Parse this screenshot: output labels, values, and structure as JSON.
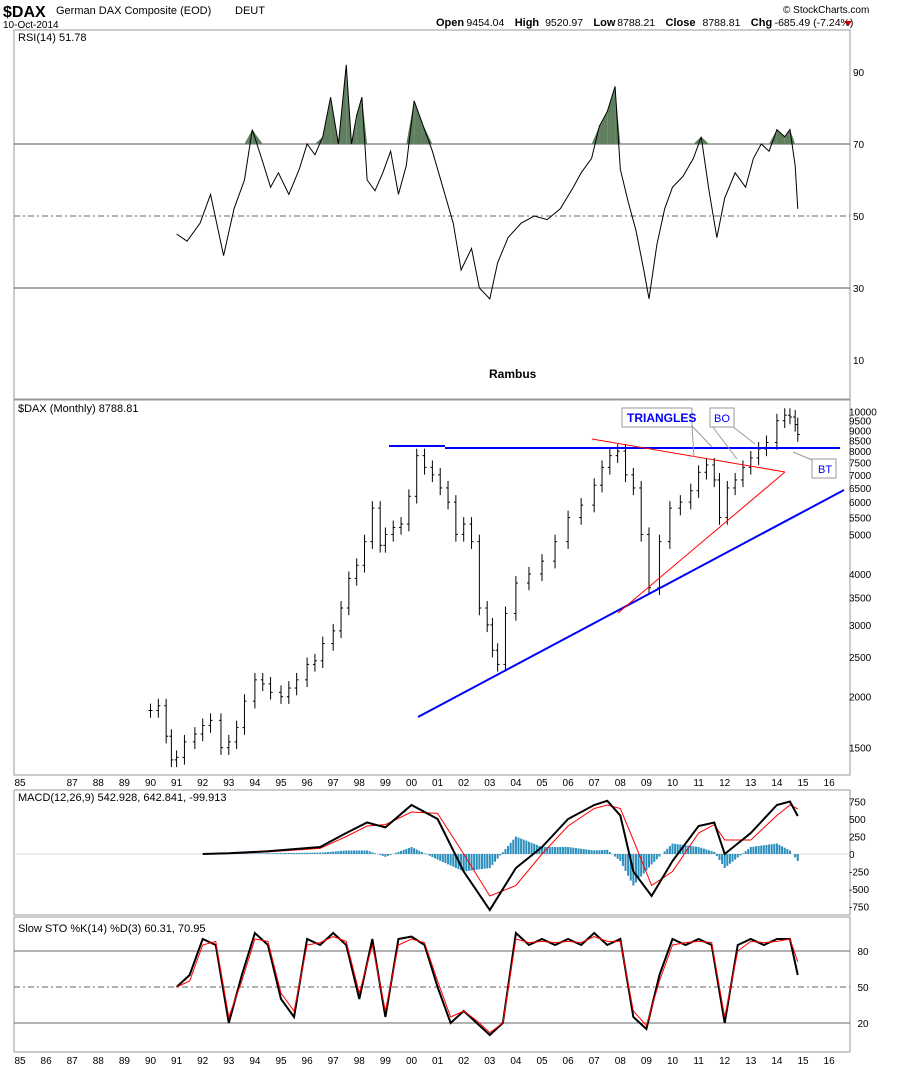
{
  "header": {
    "symbol": "$DAX",
    "name": "German DAX Composite (EOD)",
    "exchange": "DEUT",
    "date": "10-Oct-2014",
    "copyright": "© StockCharts.com",
    "ohlc": [
      {
        "label": "Open",
        "value": "9454.04"
      },
      {
        "label": "High",
        "value": "9520.97"
      },
      {
        "label": "Low",
        "value": "8788.21"
      },
      {
        "label": "Close",
        "value": "8788.81"
      },
      {
        "label": "Chg",
        "value": "-685.49 (-7.24%)"
      }
    ]
  },
  "colors": {
    "rsi_fill": "#5f7f5f",
    "trendline": "#0000ff",
    "triangle": "#ff0000",
    "macd_hist": "#2a8fbd",
    "signal": "#ff0000"
  },
  "chart_data": [
    {
      "type": "line",
      "panel": "rsi",
      "legend": "RSI(14) 51.78",
      "annotation": "Rambus",
      "ylim": [
        0,
        100
      ],
      "yticks": [
        10,
        30,
        50,
        70,
        90
      ],
      "reference_lines": [
        30,
        50,
        70
      ],
      "series": [
        {
          "name": "RSI(14)",
          "x": [
            1991,
            1991.4,
            1991.9,
            1992.3,
            1992.8,
            1993.2,
            1993.6,
            1993.9,
            1994.3,
            1994.6,
            1994.9,
            1995.3,
            1995.7,
            1996,
            1996.3,
            1996.6,
            1996.9,
            1997.2,
            1997.5,
            1997.7,
            1997.9,
            1998.1,
            1998.3,
            1998.6,
            1998.9,
            1999.2,
            1999.5,
            1999.8,
            2000.1,
            2000.4,
            2000.8,
            2001.2,
            2001.6,
            2001.9,
            2002.3,
            2002.6,
            2003,
            2003.3,
            2003.7,
            2004.2,
            2004.7,
            2005.2,
            2005.7,
            2006.2,
            2006.5,
            2006.9,
            2007.2,
            2007.5,
            2007.8,
            2008,
            2008.3,
            2008.6,
            2008.9,
            2009.1,
            2009.4,
            2009.7,
            2010,
            2010.4,
            2010.8,
            2011.1,
            2011.4,
            2011.7,
            2012,
            2012.4,
            2012.8,
            2013.1,
            2013.4,
            2013.7,
            2014,
            2014.3,
            2014.5,
            2014.7,
            2014.8
          ],
          "values": [
            45,
            43,
            48,
            56,
            39,
            52,
            60,
            74,
            65,
            58,
            62,
            56,
            63,
            70,
            67,
            72,
            83,
            70,
            92,
            70,
            78,
            83,
            60,
            57,
            62,
            68,
            56,
            64,
            82,
            76,
            68,
            58,
            48,
            35,
            41,
            30,
            27,
            37,
            44,
            48,
            50,
            49,
            52,
            58,
            62,
            66,
            75,
            79,
            86,
            63,
            54,
            46,
            35,
            27,
            42,
            52,
            58,
            61,
            66,
            72,
            57,
            44,
            55,
            62,
            58,
            66,
            70,
            68,
            74,
            72,
            74,
            64,
            52
          ]
        }
      ]
    },
    {
      "type": "bar",
      "panel": "price",
      "legend": "$DAX (Monthly) 8788.81",
      "scale": "log",
      "ylim": [
        1300,
        10500
      ],
      "yticks": [
        1500,
        2000,
        2500,
        3000,
        3500,
        4000,
        5000,
        5500,
        6000,
        6500,
        7000,
        7500,
        8000,
        8500,
        9000,
        9500,
        10000
      ],
      "xticks": [
        "85",
        "87",
        "88",
        "89",
        "90",
        "91",
        "92",
        "93",
        "94",
        "95",
        "96",
        "97",
        "98",
        "99",
        "00",
        "01",
        "02",
        "03",
        "04",
        "05",
        "06",
        "07",
        "08",
        "09",
        "10",
        "11",
        "12",
        "13",
        "14",
        "15",
        "16"
      ],
      "series": [
        {
          "name": "$DAX",
          "x": [
            1990.0,
            1990.3,
            1990.6,
            1990.8,
            1991.0,
            1991.3,
            1991.7,
            1992.0,
            1992.3,
            1992.7,
            1993.0,
            1993.3,
            1993.6,
            1994.0,
            1994.3,
            1994.6,
            1995.0,
            1995.3,
            1995.6,
            1996.0,
            1996.3,
            1996.6,
            1997.0,
            1997.3,
            1997.6,
            1997.9,
            1998.2,
            1998.5,
            1998.8,
            1999.0,
            1999.3,
            1999.6,
            1999.9,
            2000.2,
            2000.5,
            2000.8,
            2001.1,
            2001.4,
            2001.7,
            2002.0,
            2002.3,
            2002.6,
            2002.9,
            2003.1,
            2003.3,
            2003.6,
            2004.0,
            2004.5,
            2005.0,
            2005.5,
            2006.0,
            2006.5,
            2007.0,
            2007.3,
            2007.6,
            2007.9,
            2008.2,
            2008.5,
            2008.8,
            2009.1,
            2009.5,
            2009.9,
            2010.3,
            2010.7,
            2011.0,
            2011.3,
            2011.6,
            2011.8,
            2012.1,
            2012.4,
            2012.7,
            2013.0,
            2013.3,
            2013.6,
            2014.0,
            2014.3,
            2014.5,
            2014.7,
            2014.8
          ],
          "values": [
            1850,
            1900,
            1600,
            1400,
            1420,
            1550,
            1620,
            1700,
            1750,
            1500,
            1550,
            1680,
            1950,
            2200,
            2150,
            2050,
            2000,
            2100,
            2200,
            2400,
            2450,
            2700,
            2900,
            3300,
            3900,
            4200,
            4800,
            5800,
            4700,
            5000,
            5200,
            5300,
            6200,
            7800,
            7300,
            7000,
            6500,
            6000,
            5000,
            5300,
            4800,
            3300,
            3000,
            2600,
            2400,
            3200,
            3800,
            4000,
            4300,
            4800,
            5500,
            5900,
            6600,
            7300,
            7800,
            8000,
            7000,
            6500,
            5000,
            3700,
            4800,
            5800,
            6000,
            6400,
            7100,
            7400,
            6800,
            5500,
            6500,
            6800,
            7300,
            7700,
            8100,
            8400,
            9500,
            9800,
            9700,
            9300,
            8789
          ]
        }
      ],
      "annotations": [
        "TRIANGLES",
        "BO",
        "BT"
      ]
    },
    {
      "type": "line",
      "panel": "macd",
      "legend": "MACD(12,26,9) 542.928, 642.841, -99.913",
      "ylim": [
        -900,
        900
      ],
      "yticks": [
        -750,
        -500,
        -250,
        0,
        250,
        500,
        750
      ],
      "series": [
        {
          "name": "MACD",
          "x": [
            1992.0,
            1993.0,
            1994.5,
            1996.5,
            1997.5,
            1998.3,
            1999.0,
            2000.0,
            2001.0,
            2002.0,
            2003.0,
            2004.0,
            2005.0,
            2006.0,
            2007.0,
            2007.5,
            2008.0,
            2008.5,
            2009.2,
            2010.0,
            2011.0,
            2011.6,
            2012.0,
            2013.0,
            2014.0,
            2014.5,
            2014.8
          ],
          "values": [
            0,
            10,
            40,
            100,
            300,
            450,
            380,
            700,
            500,
            -250,
            -800,
            -200,
            100,
            500,
            700,
            760,
            550,
            -250,
            -600,
            -100,
            400,
            450,
            0,
            300,
            700,
            750,
            543
          ]
        },
        {
          "name": "Signal",
          "x": [
            1992.0,
            1993.0,
            1994.5,
            1996.5,
            1997.5,
            1998.3,
            1999.0,
            2000.0,
            2001.0,
            2002.0,
            2003.0,
            2004.0,
            2005.0,
            2006.0,
            2007.0,
            2007.5,
            2008.0,
            2008.5,
            2009.2,
            2010.0,
            2011.0,
            2011.6,
            2012.0,
            2013.0,
            2014.0,
            2014.5,
            2014.8
          ],
          "values": [
            0,
            5,
            30,
            80,
            250,
            400,
            420,
            600,
            580,
            0,
            -600,
            -450,
            0,
            400,
            650,
            700,
            650,
            200,
            -450,
            -250,
            300,
            420,
            200,
            200,
            550,
            700,
            643
          ]
        },
        {
          "name": "Histogram",
          "x": [
            1992.0,
            1993.0,
            1994.5,
            1996.5,
            1997.5,
            1998.3,
            1999.0,
            2000.0,
            2001.0,
            2002.0,
            2003.0,
            2004.0,
            2005.0,
            2006.0,
            2007.0,
            2007.5,
            2008.0,
            2008.5,
            2009.2,
            2010.0,
            2011.0,
            2011.6,
            2012.0,
            2013.0,
            2014.0,
            2014.5,
            2014.8
          ],
          "values": [
            0,
            5,
            10,
            20,
            50,
            50,
            -40,
            100,
            -80,
            -250,
            -200,
            250,
            100,
            100,
            50,
            60,
            -100,
            -450,
            -150,
            150,
            100,
            30,
            -200,
            100,
            150,
            50,
            -100
          ]
        }
      ]
    },
    {
      "type": "line",
      "panel": "stochastic",
      "legend": "Slow STO %K(14) %D(3) 60.31, 70.95",
      "ylim": [
        0,
        100
      ],
      "yticks": [
        20,
        50,
        80
      ],
      "reference_lines": [
        20,
        50,
        80
      ],
      "xticks": [
        "85",
        "86",
        "87",
        "88",
        "89",
        "90",
        "91",
        "92",
        "93",
        "94",
        "95",
        "96",
        "97",
        "98",
        "99",
        "00",
        "01",
        "02",
        "03",
        "04",
        "05",
        "06",
        "07",
        "08",
        "09",
        "10",
        "11",
        "12",
        "13",
        "14",
        "15",
        "16"
      ],
      "series": [
        {
          "name": "%K",
          "x": [
            1991.0,
            1991.5,
            1992.0,
            1992.5,
            1993.0,
            1993.5,
            1994.0,
            1994.5,
            1995.0,
            1995.5,
            1996.0,
            1996.5,
            1997.0,
            1997.5,
            1998.0,
            1998.5,
            1999.0,
            1999.5,
            2000.0,
            2000.5,
            2001.0,
            2001.5,
            2002.0,
            2002.5,
            2003.0,
            2003.5,
            2004.0,
            2004.5,
            2005.0,
            2005.5,
            2006.0,
            2006.5,
            2007.0,
            2007.5,
            2008.0,
            2008.5,
            2009.0,
            2009.5,
            2010.0,
            2010.5,
            2011.0,
            2011.5,
            2012.0,
            2012.5,
            2013.0,
            2013.5,
            2014.0,
            2014.5,
            2014.8
          ],
          "values": [
            50,
            60,
            90,
            85,
            20,
            60,
            95,
            85,
            40,
            25,
            90,
            85,
            95,
            85,
            40,
            90,
            25,
            90,
            92,
            85,
            50,
            20,
            30,
            20,
            10,
            20,
            95,
            85,
            90,
            85,
            90,
            85,
            95,
            85,
            90,
            25,
            15,
            60,
            90,
            85,
            90,
            85,
            20,
            85,
            90,
            85,
            90,
            90,
            60
          ]
        },
        {
          "name": "%D",
          "x": [
            1991.0,
            1991.5,
            1992.0,
            1992.5,
            1993.0,
            1993.5,
            1994.0,
            1994.5,
            1995.0,
            1995.5,
            1996.0,
            1996.5,
            1997.0,
            1997.5,
            1998.0,
            1998.5,
            1999.0,
            1999.5,
            2000.0,
            2000.5,
            2001.0,
            2001.5,
            2002.0,
            2002.5,
            2003.0,
            2003.5,
            2004.0,
            2004.5,
            2005.0,
            2005.5,
            2006.0,
            2006.5,
            2007.0,
            2007.5,
            2008.0,
            2008.5,
            2009.0,
            2009.5,
            2010.0,
            2010.5,
            2011.0,
            2011.5,
            2012.0,
            2012.5,
            2013.0,
            2013.5,
            2014.0,
            2014.5,
            2014.8
          ],
          "values": [
            50,
            55,
            85,
            88,
            25,
            55,
            90,
            88,
            45,
            30,
            85,
            87,
            92,
            88,
            45,
            85,
            30,
            85,
            90,
            87,
            55,
            25,
            30,
            22,
            12,
            20,
            90,
            87,
            88,
            87,
            88,
            87,
            92,
            88,
            88,
            30,
            18,
            55,
            85,
            87,
            88,
            87,
            25,
            80,
            88,
            87,
            88,
            90,
            71
          ]
        }
      ]
    }
  ]
}
